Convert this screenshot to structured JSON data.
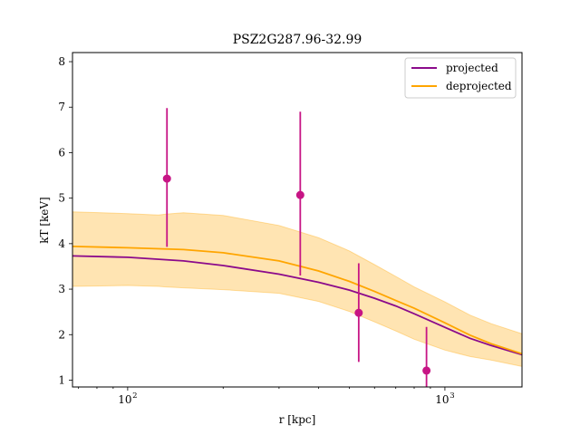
{
  "chart_data": {
    "type": "line",
    "title": "PSZ2G287.96-32.99",
    "xlabel": "r [kpc]",
    "ylabel": "kT [keV]",
    "xscale": "log",
    "xlim": [
      67,
      1750
    ],
    "ylim": [
      0.85,
      8.2
    ],
    "grid": false,
    "legend_position": "top-right",
    "x_ticks": [
      {
        "value": 100,
        "label": "10",
        "exp": "2"
      },
      {
        "value": 1000,
        "label": "10",
        "exp": "3"
      }
    ],
    "y_ticks": [
      1,
      2,
      3,
      4,
      5,
      6,
      7,
      8
    ],
    "colors": {
      "projected": "#8b0a8b",
      "deprojected": "#ffa500",
      "band": "#ffa500",
      "points": "#c71585"
    },
    "series": [
      {
        "name": "projected",
        "kind": "line",
        "x": [
          67,
          100,
          150,
          200,
          300,
          400,
          500,
          600,
          700,
          800,
          1000,
          1200,
          1400,
          1750
        ],
        "y": [
          3.73,
          3.7,
          3.62,
          3.52,
          3.33,
          3.15,
          2.98,
          2.8,
          2.63,
          2.46,
          2.16,
          1.92,
          1.76,
          1.56
        ]
      },
      {
        "name": "deprojected",
        "kind": "line",
        "x": [
          67,
          100,
          150,
          200,
          300,
          400,
          500,
          600,
          700,
          800,
          1000,
          1200,
          1400,
          1750
        ],
        "y": [
          3.94,
          3.91,
          3.87,
          3.8,
          3.62,
          3.4,
          3.17,
          2.95,
          2.75,
          2.58,
          2.26,
          1.99,
          1.8,
          1.58
        ]
      },
      {
        "name": "deprojected_band",
        "kind": "band",
        "x": [
          67,
          100,
          125,
          132,
          150,
          200,
          300,
          400,
          500,
          600,
          700,
          800,
          1000,
          1200,
          1400,
          1750
        ],
        "lower": [
          3.06,
          3.08,
          3.06,
          3.05,
          3.03,
          2.99,
          2.91,
          2.73,
          2.51,
          2.28,
          2.08,
          1.9,
          1.66,
          1.52,
          1.44,
          1.3
        ],
        "upper": [
          4.7,
          4.66,
          4.63,
          4.65,
          4.68,
          4.62,
          4.4,
          4.13,
          3.84,
          3.54,
          3.28,
          3.05,
          2.72,
          2.43,
          2.24,
          2.02
        ]
      },
      {
        "name": "data",
        "kind": "errorbar",
        "points": [
          {
            "x": 133,
            "y": 5.43,
            "ylow": 3.93,
            "yhigh": 6.98
          },
          {
            "x": 350,
            "y": 5.07,
            "ylow": 3.3,
            "yhigh": 6.9
          },
          {
            "x": 535,
            "y": 2.48,
            "ylow": 1.4,
            "yhigh": 3.57
          },
          {
            "x": 875,
            "y": 1.21,
            "ylow": 0.85,
            "yhigh": 2.17
          }
        ]
      }
    ]
  }
}
